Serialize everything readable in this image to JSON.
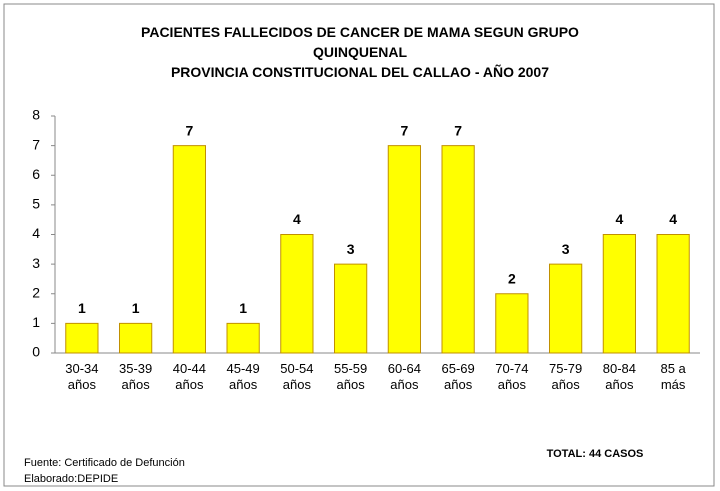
{
  "chart_data": {
    "type": "bar",
    "title": "PACIENTES FALLECIDOS DE CANCER DE MAMA SEGUN GRUPO\nQUINQUENAL\nPROVINCIA CONSTITUCIONAL DEL CALLAO - AÑO 2007",
    "categories": [
      "30-34\naños",
      "35-39\naños",
      "40-44\naños",
      "45-49\naños",
      "50-54\naños",
      "55-59\naños",
      "60-64\naños",
      "65-69\naños",
      "70-74\naños",
      "75-79\naños",
      "80-84\naños",
      "85 a\nmás"
    ],
    "values": [
      1,
      1,
      7,
      1,
      4,
      3,
      7,
      7,
      2,
      3,
      4,
      4
    ],
    "color": "#ffff00",
    "ylim": [
      0,
      8
    ],
    "yticks": [
      0,
      1,
      2,
      3,
      4,
      5,
      6,
      7,
      8
    ],
    "grid": false,
    "annotations": [
      "TOTAL:  44 CASOS",
      "Fuente: Certificado de Defunción",
      "Elaborado:DEPIDE"
    ]
  }
}
